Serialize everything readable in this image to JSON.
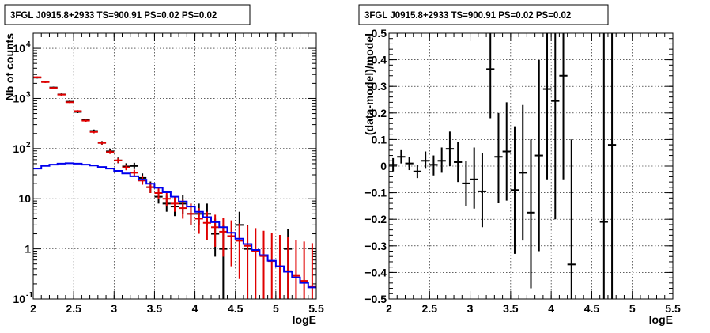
{
  "chart_data": [
    {
      "type": "scatter",
      "title": "3FGL J0915.8+2933 TS=900.91 PS=0.02 PS=0.02",
      "xlabel": "logE",
      "ylabel": "Nb of counts",
      "xlim": [
        2,
        5.5
      ],
      "ylim": [
        0.1,
        20000
      ],
      "ylog": true,
      "grid": true,
      "x_ticks": [
        "2",
        "2.5",
        "3",
        "3.5",
        "4",
        "4.5",
        "5",
        "5.5"
      ],
      "y_ticks": [
        {
          "v": 0.1,
          "label": "10",
          "exp": "-1"
        },
        {
          "v": 1,
          "label": "1",
          "exp": ""
        },
        {
          "v": 10,
          "label": "10",
          "exp": ""
        },
        {
          "v": 100,
          "label": "10",
          "exp": "2"
        },
        {
          "v": 1000,
          "label": "10",
          "exp": "3"
        },
        {
          "v": 10000,
          "label": "10",
          "exp": "4"
        }
      ],
      "series": [
        {
          "color": "#000000",
          "style": "errorbar",
          "points": [
            {
              "x": 2.05,
              "y": 2600,
              "lo": 2500,
              "hi": 2700
            },
            {
              "x": 2.15,
              "y": 2150,
              "lo": 2050,
              "hi": 2250
            },
            {
              "x": 2.25,
              "y": 1650,
              "lo": 1580,
              "hi": 1720
            },
            {
              "x": 2.35,
              "y": 1200,
              "lo": 1140,
              "hi": 1260
            },
            {
              "x": 2.45,
              "y": 860,
              "lo": 820,
              "hi": 900
            },
            {
              "x": 2.55,
              "y": 540,
              "lo": 510,
              "hi": 570
            },
            {
              "x": 2.65,
              "y": 370,
              "lo": 350,
              "hi": 390
            },
            {
              "x": 2.75,
              "y": 225,
              "lo": 210,
              "hi": 240
            },
            {
              "x": 2.85,
              "y": 130,
              "lo": 120,
              "hi": 141
            },
            {
              "x": 2.95,
              "y": 88,
              "lo": 80,
              "hi": 97
            },
            {
              "x": 3.05,
              "y": 58,
              "lo": 51,
              "hi": 66
            },
            {
              "x": 3.15,
              "y": 44,
              "lo": 38,
              "hi": 51
            },
            {
              "x": 3.25,
              "y": 45,
              "lo": 39,
              "hi": 52
            },
            {
              "x": 3.35,
              "y": 26,
              "lo": 21,
              "hi": 32
            },
            {
              "x": 3.45,
              "y": 17,
              "lo": 13,
              "hi": 22
            },
            {
              "x": 3.55,
              "y": 11,
              "lo": 8,
              "hi": 15
            },
            {
              "x": 3.65,
              "y": 8,
              "lo": 5.5,
              "hi": 11.5
            },
            {
              "x": 3.75,
              "y": 7,
              "lo": 4.5,
              "hi": 10.5
            },
            {
              "x": 3.85,
              "y": 8,
              "lo": 5,
              "hi": 12
            },
            {
              "x": 3.95,
              "y": 5,
              "lo": 3,
              "hi": 8
            },
            {
              "x": 4.05,
              "y": 5,
              "lo": 3,
              "hi": 8
            },
            {
              "x": 4.15,
              "y": 5,
              "lo": 3,
              "hi": 8
            },
            {
              "x": 4.25,
              "y": 2,
              "lo": 0.7,
              "hi": 4
            },
            {
              "x": 4.35,
              "y": 1,
              "lo": 0.1,
              "hi": 3
            },
            {
              "x": 4.55,
              "y": 3,
              "lo": 1.5,
              "hi": 5.5
            },
            {
              "x": 4.65,
              "y": 1,
              "lo": 0.1,
              "hi": 3
            },
            {
              "x": 5.15,
              "y": 1,
              "lo": 0.1,
              "hi": 2.5
            }
          ]
        },
        {
          "color": "#e00000",
          "style": "errorbar",
          "points": [
            {
              "x": 2.05,
              "y": 2650,
              "lo": 2560,
              "hi": 2740
            },
            {
              "x": 2.15,
              "y": 2120,
              "lo": 2040,
              "hi": 2200
            },
            {
              "x": 2.25,
              "y": 1620,
              "lo": 1560,
              "hi": 1680
            },
            {
              "x": 2.35,
              "y": 1190,
              "lo": 1140,
              "hi": 1240
            },
            {
              "x": 2.45,
              "y": 840,
              "lo": 810,
              "hi": 870
            },
            {
              "x": 2.55,
              "y": 560,
              "lo": 535,
              "hi": 585
            },
            {
              "x": 2.65,
              "y": 360,
              "lo": 342,
              "hi": 378
            },
            {
              "x": 2.75,
              "y": 215,
              "lo": 202,
              "hi": 228
            },
            {
              "x": 2.85,
              "y": 130,
              "lo": 121,
              "hi": 139
            },
            {
              "x": 2.95,
              "y": 85,
              "lo": 78,
              "hi": 92
            },
            {
              "x": 3.05,
              "y": 58,
              "lo": 52,
              "hi": 64
            },
            {
              "x": 3.15,
              "y": 42,
              "lo": 37,
              "hi": 47
            },
            {
              "x": 3.25,
              "y": 33,
              "lo": 28,
              "hi": 38
            },
            {
              "x": 3.35,
              "y": 23,
              "lo": 19,
              "hi": 28
            },
            {
              "x": 3.45,
              "y": 17,
              "lo": 13,
              "hi": 21
            },
            {
              "x": 3.55,
              "y": 13,
              "lo": 10,
              "hi": 17
            },
            {
              "x": 3.65,
              "y": 10,
              "lo": 7,
              "hi": 13.5
            },
            {
              "x": 3.75,
              "y": 8,
              "lo": 5.5,
              "hi": 11
            },
            {
              "x": 3.85,
              "y": 6.5,
              "lo": 4,
              "hi": 9.5
            },
            {
              "x": 3.95,
              "y": 5,
              "lo": 3,
              "hi": 8
            },
            {
              "x": 4.05,
              "y": 4,
              "lo": 2,
              "hi": 6.5
            },
            {
              "x": 4.15,
              "y": 3.3,
              "lo": 1.5,
              "hi": 5.5
            },
            {
              "x": 4.25,
              "y": 2.7,
              "lo": 1.1,
              "hi": 4.8
            },
            {
              "x": 4.35,
              "y": 2.2,
              "lo": 0.7,
              "hi": 4.2
            },
            {
              "x": 4.45,
              "y": 1.8,
              "lo": 0.45,
              "hi": 3.7
            },
            {
              "x": 4.55,
              "y": 1.45,
              "lo": 0.25,
              "hi": 3.2
            },
            {
              "x": 4.65,
              "y": 1.15,
              "lo": 0.1,
              "hi": 2.9
            },
            {
              "x": 4.75,
              "y": 0.9,
              "lo": 0.1,
              "hi": 2.6
            },
            {
              "x": 4.85,
              "y": 0.72,
              "lo": 0.1,
              "hi": 2.3
            },
            {
              "x": 4.95,
              "y": 0.57,
              "lo": 0.1,
              "hi": 2.1
            },
            {
              "x": 5.05,
              "y": 0.45,
              "lo": 0.1,
              "hi": 1.9
            },
            {
              "x": 5.15,
              "y": 0.36,
              "lo": 0.1,
              "hi": 1.7
            },
            {
              "x": 5.25,
              "y": 0.29,
              "lo": 0.1,
              "hi": 1.5
            },
            {
              "x": 5.35,
              "y": 0.23,
              "lo": 0.1,
              "hi": 1.4
            },
            {
              "x": 5.45,
              "y": 0.18,
              "lo": 0.1,
              "hi": 1.3
            }
          ]
        },
        {
          "color": "#0000ee",
          "style": "step",
          "edges": [
            2.0,
            2.1,
            2.2,
            2.3,
            2.4,
            2.5,
            2.6,
            2.7,
            2.8,
            2.9,
            3.0,
            3.1,
            3.2,
            3.3,
            3.4,
            3.5,
            3.6,
            3.7,
            3.8,
            3.9,
            4.0,
            4.1,
            4.2,
            4.3,
            4.4,
            4.5,
            4.6,
            4.7,
            4.8,
            4.9,
            5.0,
            5.1,
            5.2,
            5.3,
            5.4,
            5.5
          ],
          "values": [
            40,
            45,
            48,
            50,
            51,
            50,
            48,
            46,
            43,
            40,
            36,
            32,
            28,
            24,
            20,
            16.5,
            13.5,
            11,
            8.8,
            7,
            5.5,
            4.3,
            3.4,
            2.7,
            2.1,
            1.6,
            1.25,
            0.95,
            0.75,
            0.58,
            0.45,
            0.35,
            0.27,
            0.21,
            0.17
          ]
        }
      ]
    },
    {
      "type": "scatter",
      "title": "3FGL J0915.8+2933 TS=900.91 PS=0.02 PS=0.02",
      "xlabel": "logE",
      "ylabel": "(data-model)/model",
      "xlim": [
        2,
        5.5
      ],
      "ylim": [
        -0.5,
        0.5
      ],
      "ylog": false,
      "grid": true,
      "x_ticks": [
        "2",
        "2.5",
        "3",
        "3.5",
        "4",
        "4.5",
        "5",
        "5.5"
      ],
      "y_ticks": [
        {
          "v": -0.5,
          "label": "−0.5",
          "exp": ""
        },
        {
          "v": -0.4,
          "label": "−0.4",
          "exp": ""
        },
        {
          "v": -0.3,
          "label": "−0.3",
          "exp": ""
        },
        {
          "v": -0.2,
          "label": "−0.2",
          "exp": ""
        },
        {
          "v": -0.1,
          "label": "−0.1",
          "exp": ""
        },
        {
          "v": 0,
          "label": "0",
          "exp": ""
        },
        {
          "v": 0.1,
          "label": "0.1",
          "exp": ""
        },
        {
          "v": 0.2,
          "label": "0.2",
          "exp": ""
        },
        {
          "v": 0.3,
          "label": "0.3",
          "exp": ""
        },
        {
          "v": 0.4,
          "label": "0.4",
          "exp": ""
        },
        {
          "v": 0.5,
          "label": "0.5",
          "exp": ""
        }
      ],
      "series": [
        {
          "color": "#000000",
          "style": "errorbar",
          "points": [
            {
              "x": 2.05,
              "y": 0.005,
              "lo": -0.02,
              "hi": 0.03
            },
            {
              "x": 2.15,
              "y": 0.035,
              "lo": 0.01,
              "hi": 0.06
            },
            {
              "x": 2.25,
              "y": 0.01,
              "lo": -0.015,
              "hi": 0.035
            },
            {
              "x": 2.35,
              "y": -0.02,
              "lo": -0.045,
              "hi": 0.005
            },
            {
              "x": 2.45,
              "y": 0.02,
              "lo": -0.01,
              "hi": 0.055
            },
            {
              "x": 2.55,
              "y": 0.005,
              "lo": -0.035,
              "hi": 0.04
            },
            {
              "x": 2.65,
              "y": 0.02,
              "lo": -0.025,
              "hi": 0.07
            },
            {
              "x": 2.75,
              "y": 0.065,
              "lo": 0.0,
              "hi": 0.13
            },
            {
              "x": 2.85,
              "y": 0.015,
              "lo": -0.06,
              "hi": 0.09
            },
            {
              "x": 2.95,
              "y": -0.065,
              "lo": -0.15,
              "hi": 0.02
            },
            {
              "x": 3.05,
              "y": -0.05,
              "lo": -0.16,
              "hi": 0.07
            },
            {
              "x": 3.15,
              "y": -0.095,
              "lo": -0.23,
              "hi": 0.05
            },
            {
              "x": 3.25,
              "y": 0.365,
              "lo": 0.18,
              "hi": 0.55
            },
            {
              "x": 3.35,
              "y": 0.035,
              "lo": -0.14,
              "hi": 0.2
            },
            {
              "x": 3.45,
              "y": 0.055,
              "lo": -0.13,
              "hi": 0.24
            },
            {
              "x": 3.55,
              "y": -0.09,
              "lo": -0.33,
              "hi": 0.15
            },
            {
              "x": 3.65,
              "y": -0.025,
              "lo": -0.28,
              "hi": 0.23
            },
            {
              "x": 3.75,
              "y": -0.175,
              "lo": -0.46,
              "hi": 0.1
            },
            {
              "x": 3.85,
              "y": 0.04,
              "lo": -0.32,
              "hi": 0.4
            },
            {
              "x": 3.95,
              "y": 0.29,
              "lo": -0.05,
              "hi": 0.63
            },
            {
              "x": 4.05,
              "y": 0.245,
              "lo": -0.2,
              "hi": 0.7
            },
            {
              "x": 4.15,
              "y": 0.34,
              "lo": -0.05,
              "hi": 0.73
            },
            {
              "x": 4.25,
              "y": -0.37,
              "lo": -0.8,
              "hi": 0.1
            },
            {
              "x": 4.65,
              "y": -0.21,
              "lo": -0.8,
              "hi": 0.6
            },
            {
              "x": 4.75,
              "y": 0.08,
              "lo": -0.8,
              "hi": 0.95
            }
          ]
        }
      ]
    }
  ]
}
